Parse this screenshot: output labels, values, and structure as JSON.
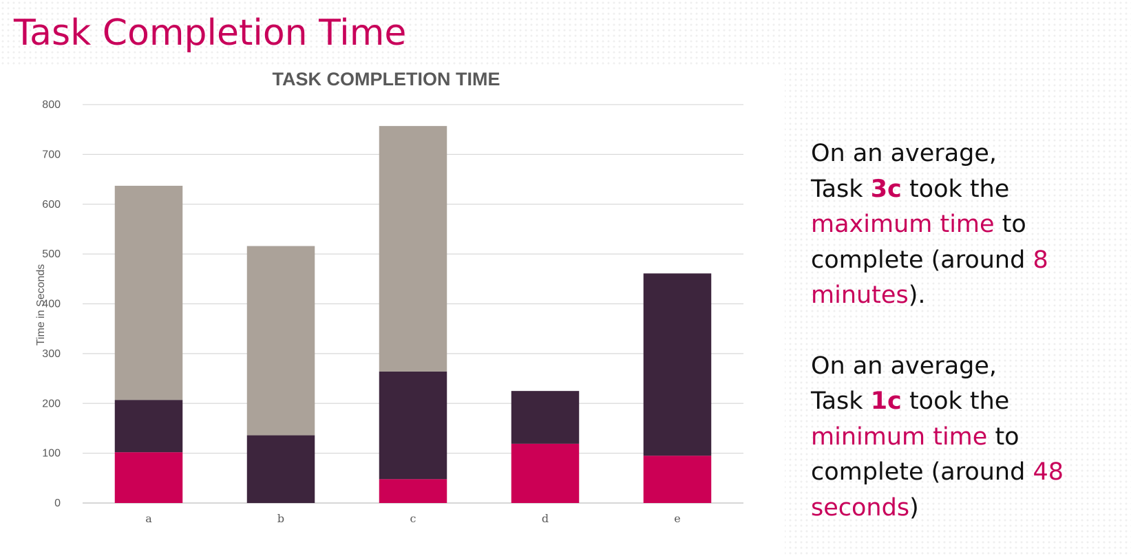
{
  "slide": {
    "title": "Task Completion Time"
  },
  "chart_data": {
    "type": "bar",
    "stacked": true,
    "title": "TASK COMPLETION TIME",
    "xlabel": "",
    "ylabel": "Time in Seconds",
    "categories": [
      "a",
      "b",
      "c",
      "d",
      "e"
    ],
    "ylim": [
      0,
      800
    ],
    "yticks": [
      0,
      100,
      200,
      300,
      400,
      500,
      600,
      700,
      800
    ],
    "grid": true,
    "legend": "none",
    "series": [
      {
        "values": [
          102,
          0,
          48,
          119,
          95
        ],
        "color": "#cc0055"
      },
      {
        "values": [
          105,
          136,
          216,
          106,
          366
        ],
        "color": "#3d253d"
      },
      {
        "values": [
          430,
          380,
          493,
          0,
          0
        ],
        "color": "#aba299"
      }
    ]
  },
  "summary": {
    "p1": {
      "line1": "On an average,",
      "task_prefix": "Task",
      "task_id": "3c",
      "took": "took the",
      "highlight": "maximum time",
      "to": "to",
      "complete": "complete (around",
      "value": "8",
      "unit": "minutes",
      "end": ")."
    },
    "p2": {
      "line1": "On an average,",
      "task_prefix": "Task",
      "task_id": "1c",
      "took": "took the",
      "highlight": "minimum time",
      "to": "to",
      "complete": "complete (around",
      "value": "48",
      "unit": "seconds",
      "end": ")"
    }
  }
}
